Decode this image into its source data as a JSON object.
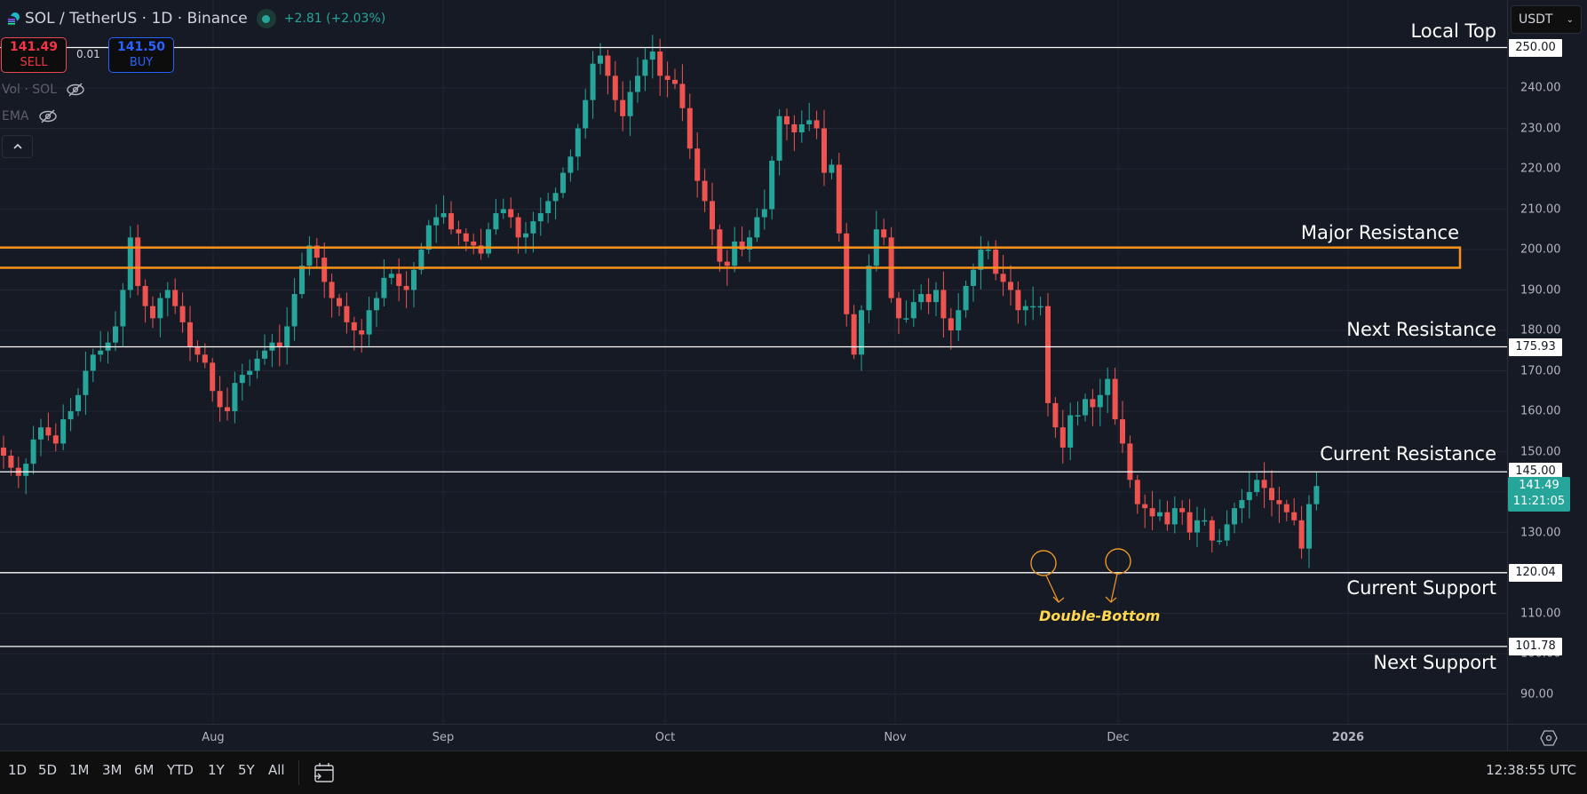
{
  "header": {
    "symbol": "SOL / TetherUS · 1D · Binance",
    "change": "+2.81 (+2.03%)",
    "status": "market-open"
  },
  "trade": {
    "sell_price": "141.49",
    "sell_label": "SELL",
    "buy_price": "141.50",
    "buy_label": "BUY",
    "spread": "0.01"
  },
  "indicators": [
    {
      "label": "Vol · SOL",
      "visibility_icon": "eye-off-icon"
    },
    {
      "label": "EMA",
      "visibility_icon": "eye-off-icon"
    }
  ],
  "currency": {
    "selected": "USDT"
  },
  "colors": {
    "background": "#161a25",
    "grid": "#232733",
    "up": "#26a69a",
    "down": "#ef5350",
    "zone": "#f7931a",
    "level_line": "#ffffff",
    "annotation": "#ffd84d"
  },
  "price_axis": {
    "ticks": [
      "250.00",
      "240.00",
      "230.00",
      "220.00",
      "210.00",
      "200.00",
      "190.00",
      "180.00",
      "170.00",
      "160.00",
      "150.00",
      "140.00",
      "130.00",
      "120.00",
      "110.00",
      "100.00",
      "90.00"
    ],
    "highlight_labels": [
      "250.00",
      "175.93",
      "145.00",
      "120.04",
      "101.78"
    ],
    "current_price": "141.49",
    "countdown": "11:21:05"
  },
  "time_axis": {
    "labels": [
      "Aug",
      "Sep",
      "Oct",
      "Nov",
      "Dec",
      "2026"
    ]
  },
  "annotations": {
    "local_top": "Local Top",
    "major_resistance": "Major Resistance",
    "next_resistance": "Next Resistance",
    "current_resistance": "Current Resistance",
    "current_support": "Current Support",
    "next_support": "Next Support",
    "double_bottom": "Double-Bottom"
  },
  "bottom_bar": {
    "ranges": [
      "1D",
      "5D",
      "1M",
      "3M",
      "6M",
      "YTD",
      "1Y",
      "5Y",
      "All"
    ],
    "clock": "12:38:55 UTC"
  },
  "chart_data": {
    "type": "candlestick",
    "title": "SOL / TetherUS · 1D · Binance",
    "xlabel": "",
    "ylabel": "USDT",
    "ylim": [
      85,
      257
    ],
    "x_ticks": [
      "Aug",
      "Sep",
      "Oct",
      "Nov",
      "Dec",
      "2026"
    ],
    "grid": true,
    "horizontal_levels": [
      {
        "label": "Local Top",
        "price": 250.0
      },
      {
        "label": "Next Resistance",
        "price": 175.93
      },
      {
        "label": "Current Resistance",
        "price": 145.0
      },
      {
        "label": "Current Support",
        "price": 120.04
      },
      {
        "label": "Next Support",
        "price": 101.78
      }
    ],
    "zones": [
      {
        "label": "Major Resistance",
        "low": 195.5,
        "high": 200.5
      }
    ],
    "pattern": {
      "label": "Double-Bottom",
      "lows": [
        122.5,
        123.5
      ]
    },
    "last_close": 141.49,
    "closes": [
      149,
      146,
      144,
      147,
      153,
      156,
      154,
      152,
      158,
      160,
      164,
      170,
      174,
      175,
      177,
      181,
      190,
      203,
      191,
      186,
      183,
      188,
      190,
      186,
      182,
      176,
      174,
      172,
      165,
      161,
      160,
      167,
      169,
      170,
      173,
      175,
      177,
      176,
      181,
      189,
      196,
      201,
      198,
      192,
      188,
      186,
      182,
      180,
      179,
      185,
      188,
      193,
      194,
      191,
      190,
      195,
      200,
      206,
      208,
      209,
      205,
      204,
      202,
      201,
      199,
      205,
      209,
      210,
      208,
      203,
      204,
      207,
      209,
      212,
      214,
      219,
      223,
      230,
      237,
      246,
      248,
      243,
      237,
      233,
      239,
      243,
      247,
      249,
      243,
      242,
      241,
      235,
      225,
      217,
      212,
      205,
      197,
      196,
      202,
      200,
      203,
      208,
      210,
      222,
      233,
      231,
      229,
      231,
      232,
      230,
      219,
      221,
      204,
      184,
      174,
      185,
      196,
      205,
      203,
      188,
      183,
      183,
      187,
      189,
      187,
      190,
      183,
      180,
      185,
      191,
      195,
      200,
      200,
      194,
      192,
      190,
      185,
      186,
      186,
      186,
      162,
      156,
      151,
      159,
      159,
      163,
      161,
      164,
      168,
      158,
      152,
      143,
      137,
      136,
      134,
      135,
      132,
      136,
      135,
      130,
      133,
      133,
      128,
      128,
      132,
      136,
      138,
      140,
      143,
      141,
      138,
      137,
      135,
      133,
      126,
      137,
      141.49
    ]
  }
}
